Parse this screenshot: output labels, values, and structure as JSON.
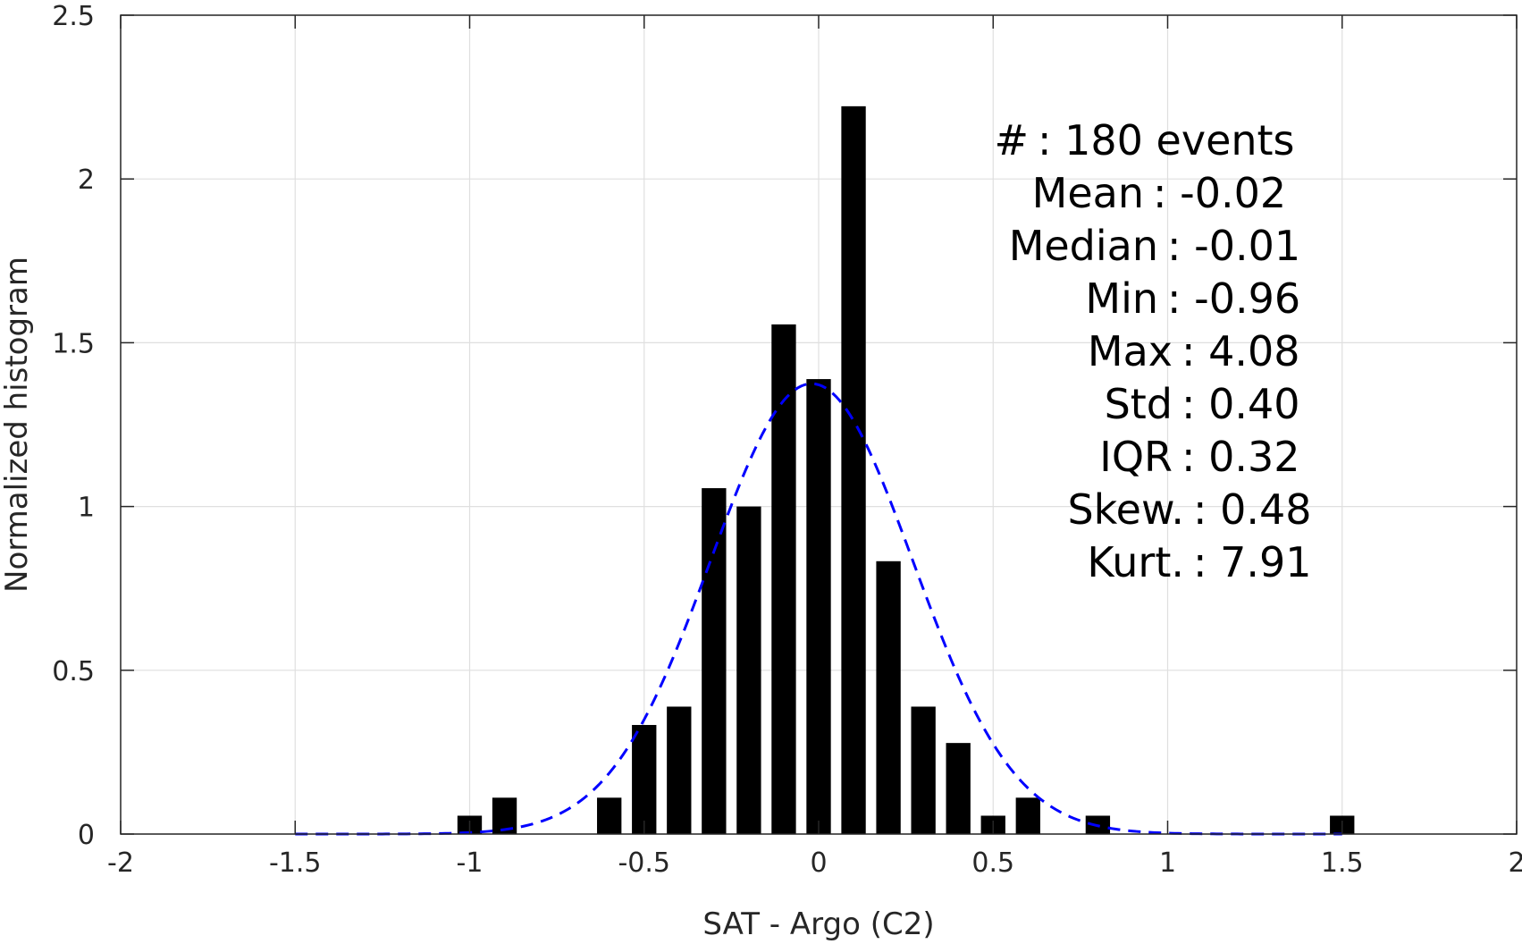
{
  "chart_data": {
    "type": "bar",
    "xlabel": "SAT - Argo (C2)",
    "ylabel": "Normalized histogram",
    "xlim": [
      -2,
      2
    ],
    "ylim": [
      0,
      2.5
    ],
    "grid": true,
    "x_ticks": [
      -2,
      -1.5,
      -1,
      -0.5,
      0,
      0.5,
      1,
      1.5,
      2
    ],
    "y_ticks": [
      0,
      0.5,
      1,
      1.5,
      2,
      2.5
    ],
    "x_tick_labels": [
      "-2",
      "-1.5",
      "-1",
      "-0.5",
      "0",
      "0.5",
      "1",
      "1.5",
      "2"
    ],
    "y_tick_labels": [
      "0",
      "0.5",
      "1",
      "1.5",
      "2",
      "2.5"
    ],
    "bar_width": 0.07,
    "bars": {
      "x": [
        -1.0,
        -0.9,
        -0.6,
        -0.5,
        -0.4,
        -0.3,
        -0.2,
        -0.1,
        0.0,
        0.1,
        0.2,
        0.3,
        0.4,
        0.5,
        0.6,
        0.8,
        1.5
      ],
      "values": [
        0.056,
        0.111,
        0.111,
        0.333,
        0.389,
        1.056,
        1.0,
        1.556,
        1.389,
        2.222,
        0.833,
        0.389,
        0.278,
        0.056,
        0.111,
        0.056,
        0.056
      ],
      "color": "#000000"
    },
    "fit_curve": {
      "style": "dashed",
      "color": "#0000ff",
      "mean": -0.02,
      "std": 0.29,
      "peak": 1.375,
      "x_range": [
        -1.5,
        1.5
      ]
    },
    "annotations": [
      {
        "label": "#  ",
        "value": ": 180 events"
      },
      {
        "label": "Mean",
        "value": ": -0.02"
      },
      {
        "label": "Median",
        "value": ": -0.01"
      },
      {
        "label": "Min",
        "value": ": -0.96"
      },
      {
        "label": "Max",
        "value": ": 4.08"
      },
      {
        "label": "Std",
        "value": ": 0.40"
      },
      {
        "label": "IQR",
        "value": ": 0.32"
      },
      {
        "label": "Skew.",
        "value": ": 0.48"
      },
      {
        "label": "Kurt.",
        "value": ": 7.91"
      }
    ]
  }
}
